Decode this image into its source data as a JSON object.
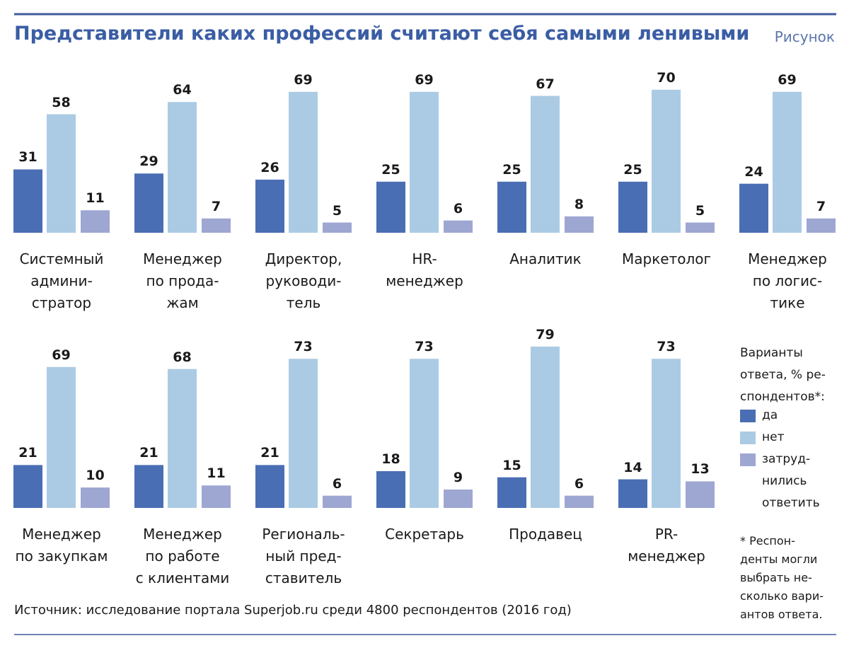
{
  "chart_data": {
    "type": "bar",
    "title": "Представители каких профессий считают себя самыми ленивыми",
    "figure_label": "Рисунок",
    "categories": [
      "Системный\nадмини-\nстратор",
      "Менеджер\nпо прода-\nжам",
      "Директор,\nруководи-\nтель",
      "HR-\nменеджер",
      "Аналитик",
      "Маркетолог",
      "Менеджер\nпо логис-\nтике",
      "Менеджер\nпо закупкам",
      "Менеджер\nпо работе\nс клиентами",
      "Региональ-\nный пред-\nставитель",
      "Секретарь",
      "Продавец",
      "PR-\nменеджер"
    ],
    "series": [
      {
        "name": "да",
        "color": "#4a6eb4",
        "values": [
          31,
          29,
          26,
          25,
          25,
          25,
          24,
          21,
          21,
          21,
          18,
          15,
          14
        ]
      },
      {
        "name": "нет",
        "color": "#abcbe4",
        "values": [
          58,
          64,
          69,
          69,
          67,
          70,
          69,
          69,
          68,
          73,
          73,
          79,
          73
        ]
      },
      {
        "name": "затруд-\nнились\nответить",
        "color": "#9ea6d2",
        "values": [
          11,
          7,
          5,
          6,
          8,
          5,
          7,
          10,
          11,
          6,
          9,
          6,
          13
        ]
      }
    ],
    "legend_title": "Варианты\nответа, % ре-\nспондентов*:",
    "footnote": "* Респон-\nденты могли\nвыбрать не-\nсколько вари-\nантов ответа.",
    "source": "Источник: исследование портала Superjob.ru среди 4800 респондентов (2016 год)",
    "ylim": [
      0,
      80
    ]
  }
}
